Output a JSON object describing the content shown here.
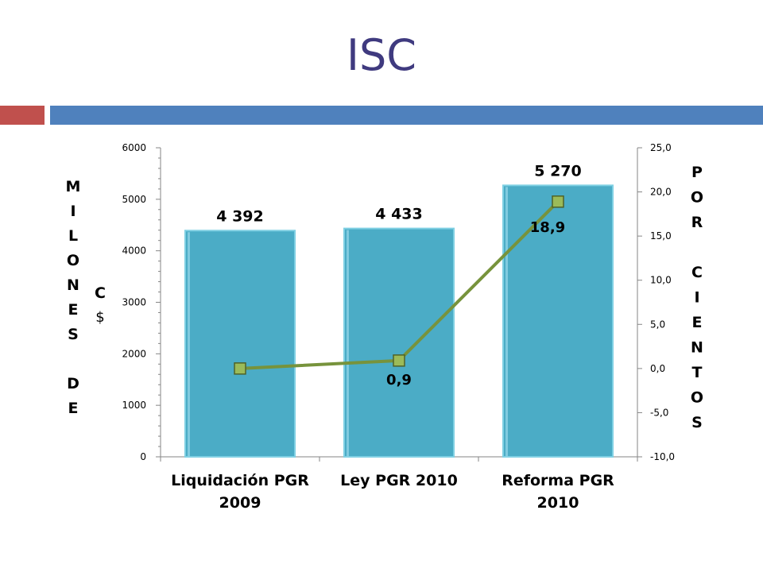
{
  "slide": {
    "title": "ISC",
    "colors": {
      "title": "#3f3a7f",
      "accent_red": "#c0504d",
      "accent_blue": "#4f81bd"
    }
  },
  "chart_data": {
    "type": "bar",
    "categories": [
      [
        "Liquidación PGR",
        "2009"
      ],
      [
        "Ley PGR 2010"
      ],
      [
        "Reforma PGR",
        "2010"
      ]
    ],
    "series": [
      {
        "type": "bar",
        "values": [
          4392,
          4433,
          5270
        ],
        "labels": [
          "4 392",
          "4 433",
          "5 270"
        ],
        "color": "#4bacc6",
        "axis": "left"
      },
      {
        "type": "line",
        "values": [
          0.0,
          0.9,
          18.9
        ],
        "labels": [
          "",
          "0,9",
          "18,9"
        ],
        "color": "#77933c",
        "marker_color": "#9bbb59",
        "axis": "right"
      }
    ],
    "y_left": {
      "label_lines": [
        "M",
        "I",
        "L",
        "O",
        "N",
        "E",
        "S",
        "",
        "D",
        "E"
      ],
      "label_lines_2": [
        "C",
        "$"
      ],
      "ylim": [
        0,
        6000
      ],
      "ticks": [
        0,
        1000,
        2000,
        3000,
        4000,
        5000,
        6000
      ],
      "tick_labels": [
        "0",
        "1000",
        "2000",
        "3000",
        "4000",
        "5000",
        "6000"
      ]
    },
    "y_right": {
      "label_lines": [
        "P",
        "O",
        "R",
        "",
        "C",
        "I",
        "E",
        "N",
        "T",
        "O",
        "S"
      ],
      "ylim": [
        -10,
        25
      ],
      "ticks": [
        -10,
        -5,
        0,
        5,
        10,
        15,
        20,
        25
      ],
      "tick_labels": [
        "-10,0",
        "-5,0",
        "0,0",
        "5,0",
        "10,0",
        "15,0",
        "20,0",
        "25,0"
      ]
    },
    "grid": false
  }
}
